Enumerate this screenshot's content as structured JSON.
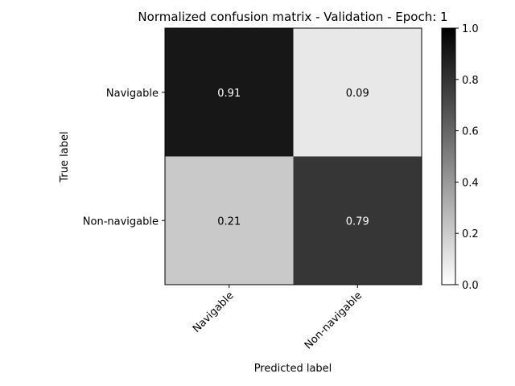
{
  "chart_data": {
    "type": "heatmap",
    "title": "Normalized confusion matrix - Validation - Epoch: 1",
    "xlabel": "Predicted label",
    "ylabel": "True label",
    "x_categories": [
      "Navigable",
      "Non-navigable"
    ],
    "y_categories": [
      "Navigable",
      "Non-navigable"
    ],
    "values": [
      [
        0.91,
        0.09
      ],
      [
        0.21,
        0.79
      ]
    ],
    "cell_labels": [
      [
        "0.91",
        "0.09"
      ],
      [
        "0.21",
        "0.79"
      ]
    ],
    "colormap": "Greys",
    "colorbar": {
      "range": [
        0.0,
        1.0
      ],
      "ticks": [
        0.0,
        0.2,
        0.4,
        0.6,
        0.8,
        1.0
      ],
      "tick_labels": [
        "0.0",
        "0.2",
        "0.4",
        "0.6",
        "0.8",
        "1.0"
      ]
    },
    "grid": false,
    "x_tick_rotation_deg": 45
  }
}
